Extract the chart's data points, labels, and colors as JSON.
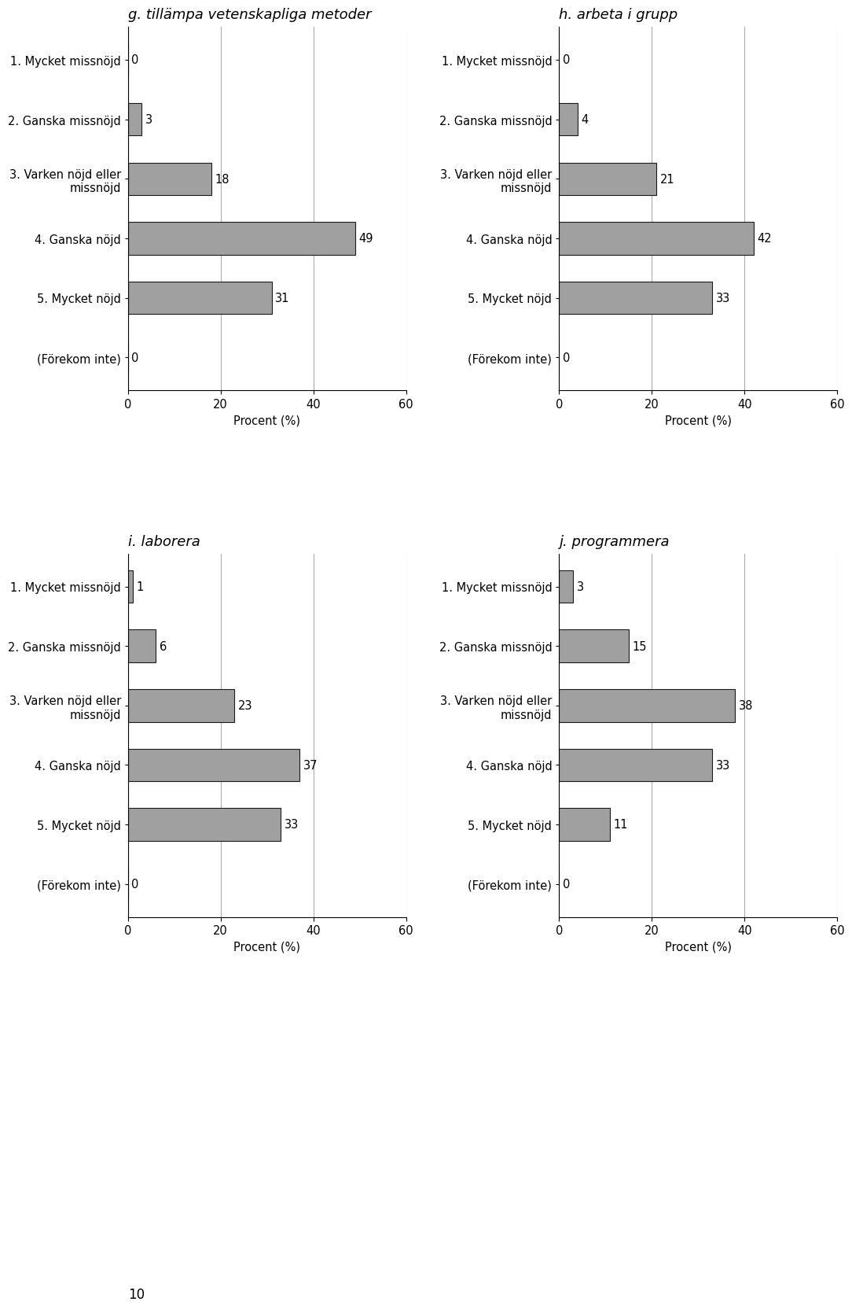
{
  "charts": [
    {
      "title": "g. tillämpa vetenskapliga metoder",
      "categories": [
        "1. Mycket missnöjd",
        "2. Ganska missnöjd",
        "3. Varken nöjd eller\nmissnöjd",
        "4. Ganska nöjd",
        "5. Mycket nöjd",
        "(Förekom inte)"
      ],
      "values": [
        0,
        3,
        18,
        49,
        31,
        0
      ]
    },
    {
      "title": "h. arbeta i grupp",
      "categories": [
        "1. Mycket missnöjd",
        "2. Ganska missnöjd",
        "3. Varken nöjd eller\nmissnöjd",
        "4. Ganska nöjd",
        "5. Mycket nöjd",
        "(Förekom inte)"
      ],
      "values": [
        0,
        4,
        21,
        42,
        33,
        0
      ]
    },
    {
      "title": "i. laborera",
      "categories": [
        "1. Mycket missnöjd",
        "2. Ganska missnöjd",
        "3. Varken nöjd eller\nmissnöjd",
        "4. Ganska nöjd",
        "5. Mycket nöjd",
        "(Förekom inte)"
      ],
      "values": [
        1,
        6,
        23,
        37,
        33,
        0
      ]
    },
    {
      "title": "j. programmera",
      "categories": [
        "1. Mycket missnöjd",
        "2. Ganska missnöjd",
        "3. Varken nöjd eller\nmissnöjd",
        "4. Ganska nöjd",
        "5. Mycket nöjd",
        "(Förekom inte)"
      ],
      "values": [
        3,
        15,
        38,
        33,
        11,
        0
      ]
    }
  ],
  "bar_color": "#a0a0a0",
  "bar_edgecolor": "#1a1a1a",
  "xlabel": "Procent (%)",
  "xlim": [
    0,
    60
  ],
  "xticks": [
    0,
    20,
    40,
    60
  ],
  "title_fontsize": 13,
  "label_fontsize": 10.5,
  "tick_fontsize": 10.5,
  "value_fontsize": 10.5,
  "background_color": "#ffffff",
  "grid_color": "#aaaaaa",
  "page_number": "10"
}
